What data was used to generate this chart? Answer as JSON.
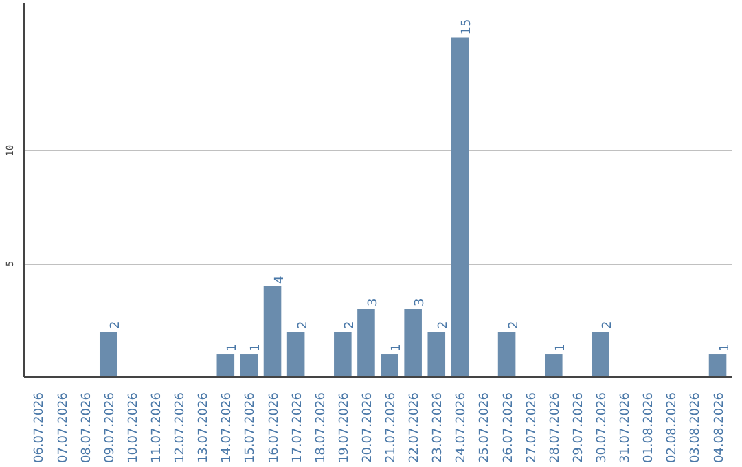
{
  "chart_data": {
    "type": "bar",
    "categories": [
      "06.07.2026",
      "07.07.2026",
      "08.07.2026",
      "09.07.2026",
      "10.07.2026",
      "11.07.2026",
      "12.07.2026",
      "13.07.2026",
      "14.07.2026",
      "15.07.2026",
      "16.07.2026",
      "17.07.2026",
      "18.07.2026",
      "19.07.2026",
      "20.07.2026",
      "21.07.2026",
      "22.07.2026",
      "23.07.2026",
      "24.07.2026",
      "25.07.2026",
      "26.07.2026",
      "27.07.2026",
      "28.07.2026",
      "29.07.2026",
      "30.07.2026",
      "31.07.2026",
      "01.08.2026",
      "02.08.2026",
      "03.08.2026",
      "04.08.2026"
    ],
    "values": [
      0,
      0,
      0,
      2,
      0,
      0,
      0,
      0,
      1,
      1,
      4,
      2,
      0,
      2,
      3,
      1,
      3,
      2,
      15,
      0,
      2,
      0,
      1,
      0,
      2,
      0,
      0,
      0,
      0,
      1
    ],
    "value_labels": [
      null,
      null,
      null,
      "2",
      null,
      null,
      null,
      null,
      "1",
      "1",
      "4",
      "2",
      null,
      "2",
      "3",
      "1",
      "3",
      "2",
      "15",
      null,
      "2",
      null,
      "1",
      null,
      "2",
      null,
      null,
      null,
      null,
      "1"
    ],
    "color": "#6a8cad",
    "ylim": [
      0,
      16.5
    ],
    "yticks": [
      5,
      10
    ],
    "grid": "y"
  }
}
